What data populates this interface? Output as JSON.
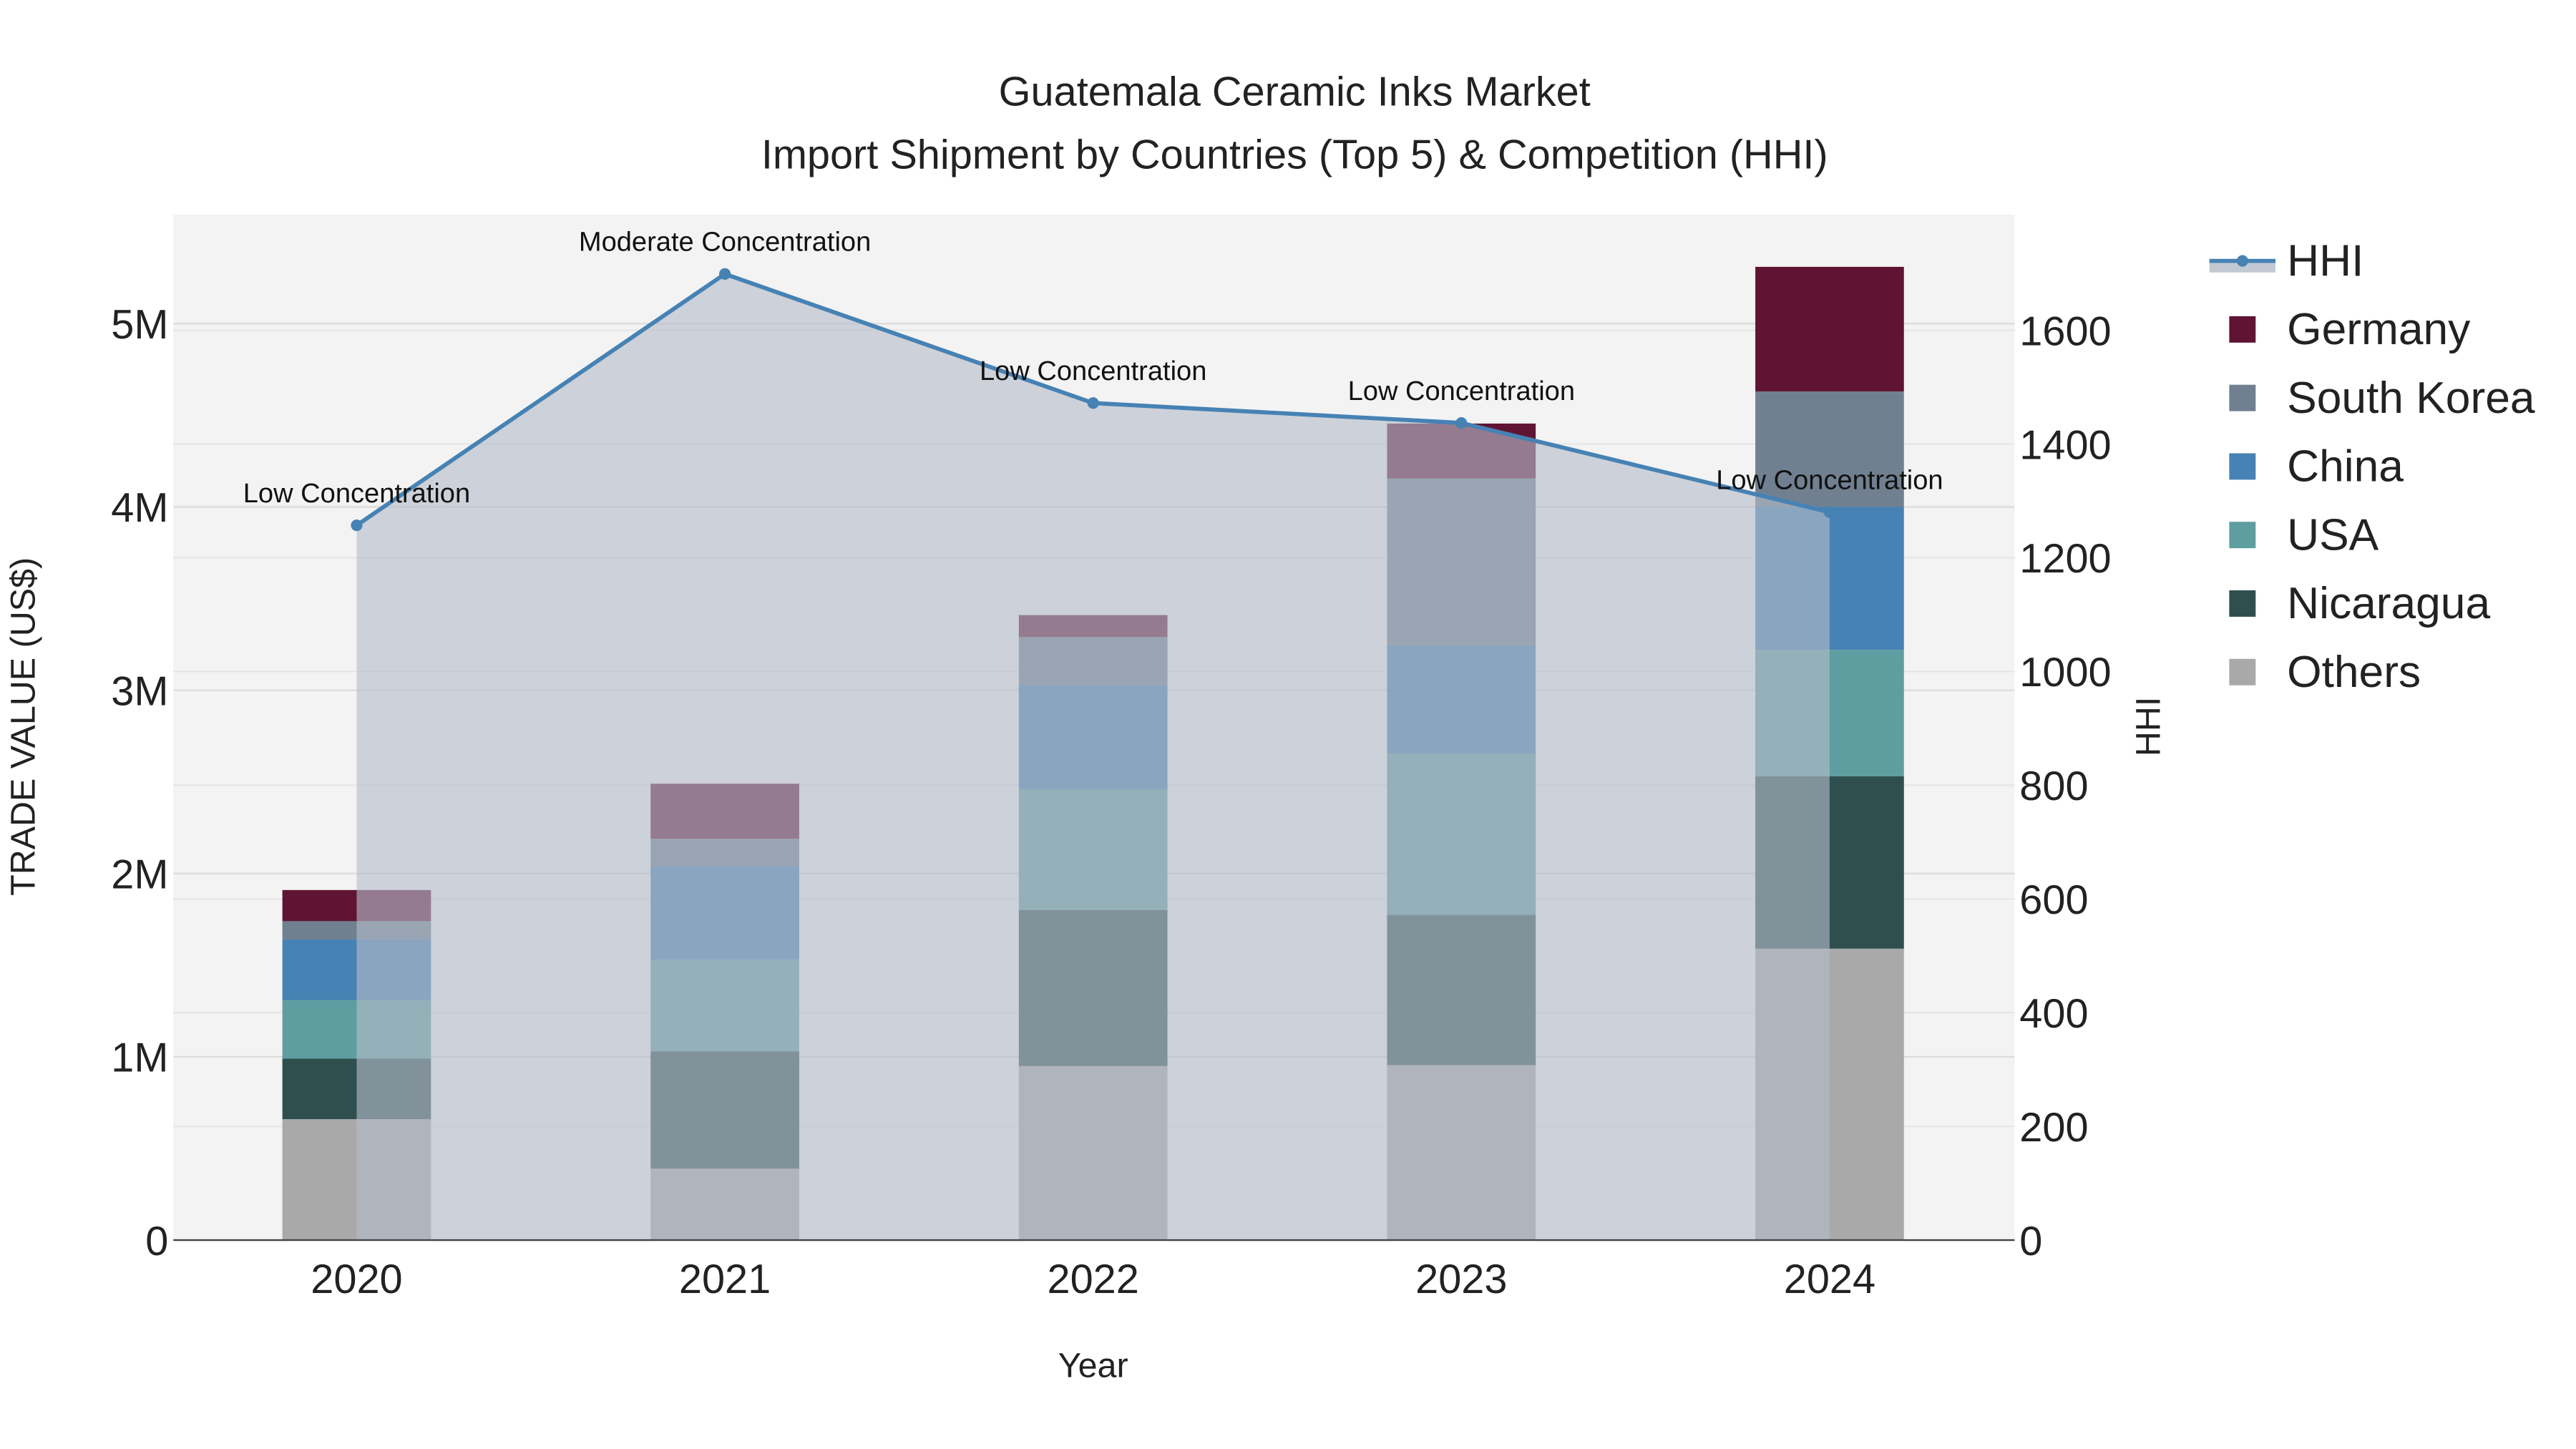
{
  "chart_data": {
    "type": "bar",
    "stacked": true,
    "title": "Guatemala Ceramic Inks Market",
    "subtitle": "Import Shipment by Countries (Top 5) & Competition (HHI)",
    "xlabel": "Year",
    "ylabel": "TRADE VALUE (US$)",
    "y2label": "HHI",
    "categories": [
      "2020",
      "2021",
      "2022",
      "2023",
      "2024"
    ],
    "ylim": [
      0,
      5600000
    ],
    "y_ticks": [
      0,
      1000000,
      2000000,
      3000000,
      4000000,
      5000000
    ],
    "y_tick_labels": [
      "0",
      "1M",
      "2M",
      "3M",
      "4M",
      "5M"
    ],
    "y2lim": [
      0,
      1800
    ],
    "y2_ticks": [
      0,
      200,
      400,
      600,
      800,
      1000,
      1200,
      1400,
      1600
    ],
    "y2_tick_labels": [
      "0",
      "200",
      "400",
      "600",
      "800",
      "1000",
      "1200",
      "1400",
      "1600"
    ],
    "grid": true,
    "legend_position": "right",
    "series": [
      {
        "name": "Others",
        "color": "#A9A9A9",
        "values": [
          660000,
          390000,
          950000,
          955000,
          1590000
        ]
      },
      {
        "name": "Nicaragua",
        "color": "#2F4F4F",
        "values": [
          330000,
          640000,
          850000,
          820000,
          940000
        ]
      },
      {
        "name": "USA",
        "color": "#5F9EA0",
        "values": [
          320000,
          500000,
          660000,
          880000,
          690000
        ]
      },
      {
        "name": "China",
        "color": "#4682B4",
        "values": [
          330000,
          510000,
          570000,
          590000,
          780000
        ]
      },
      {
        "name": "South Korea",
        "color": "#708090",
        "values": [
          100000,
          150000,
          260000,
          910000,
          630000
        ]
      },
      {
        "name": "Germany",
        "color": "#601434",
        "values": [
          170000,
          300000,
          120000,
          300000,
          680000
        ]
      }
    ],
    "hhi": {
      "name": "HHI",
      "color": "#4682B4",
      "values": [
        1257,
        1699,
        1472,
        1437,
        1280
      ],
      "annotations": [
        "Low Concentration",
        "Moderate Concentration",
        "Low Concentration",
        "Low Concentration",
        "Low Concentration"
      ]
    },
    "legend_order": [
      "HHI",
      "Germany",
      "South Korea",
      "China",
      "USA",
      "Nicaragua",
      "Others"
    ]
  }
}
